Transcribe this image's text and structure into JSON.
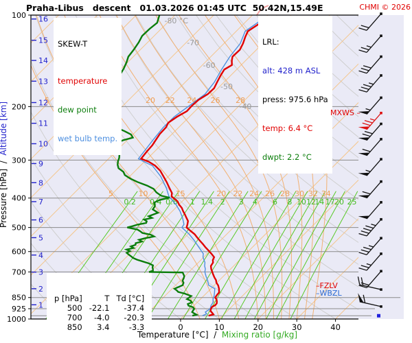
{
  "title": "Praha-Libus   descent   01.03.2026 01:45 UTC  50.42N,15.49E",
  "credit": "CHMI © 2026",
  "legend": {
    "heading": "SKEW-T",
    "items": [
      {
        "label": "temperature",
        "color": "#e00000"
      },
      {
        "label": "dew point",
        "color": "#0b7d0b"
      },
      {
        "label": "wet bulb temp.",
        "color": "#4d8fe0"
      }
    ]
  },
  "info_box": {
    "heading": "LRL:",
    "alt": "alt: 428 m ASL",
    "press": "press: 975.6 hPa",
    "temp": "temp: 6.4 °C",
    "dwpt": "dwpt: 2.2 °C"
  },
  "markers": {
    "mxws": "MXWS –",
    "fzlv": "–FZLV",
    "wbzl": "–WBZL"
  },
  "table": {
    "headers": [
      "p [hPa]",
      "T",
      "Td [°C]"
    ],
    "rows": [
      [
        "500",
        "-22.1",
        "-37.4"
      ],
      [
        "700",
        "-4.0",
        "-20.3"
      ],
      [
        "850",
        "3.4",
        "-3.3"
      ]
    ]
  },
  "axis_labels": {
    "x_black": "Temperature [°C]  /  ",
    "x_green": "Mixing ratio [g/kg]",
    "y_black": "Pressure [hPa]  /  ",
    "y_blue": "Altitude [km]"
  },
  "chart_data": {
    "type": "skewt-log-p sounding",
    "x_ticks": [
      -30,
      -20,
      -10,
      0,
      10,
      20,
      30,
      40
    ],
    "pressure_ticks": [
      100,
      200,
      300,
      400,
      500,
      600,
      700,
      850,
      925,
      1000
    ],
    "altitude_ticks": [
      {
        "km": 16,
        "p": 103
      },
      {
        "km": 15,
        "p": 121
      },
      {
        "km": 14,
        "p": 141
      },
      {
        "km": 13,
        "p": 165
      },
      {
        "km": 12,
        "p": 194
      },
      {
        "km": 11,
        "p": 227
      },
      {
        "km": 10,
        "p": 265
      },
      {
        "km": 9,
        "p": 308
      },
      {
        "km": 8,
        "p": 356
      },
      {
        "km": 7,
        "p": 411
      },
      {
        "km": 6,
        "p": 472
      },
      {
        "km": 5,
        "p": 540
      },
      {
        "km": 4,
        "p": 616
      },
      {
        "km": 3,
        "p": 701
      },
      {
        "km": 2,
        "p": 795
      },
      {
        "km": 1,
        "p": 898
      }
    ],
    "isotherm_step": 10,
    "isotherm_labels": [
      {
        "t": -80,
        "y": 30,
        "text": "-80 °C"
      },
      {
        "t": -70,
        "y": 62,
        "text": "-70"
      },
      {
        "t": -60,
        "y": 95,
        "text": "-60"
      },
      {
        "t": -50,
        "y": 126,
        "text": "-50"
      },
      {
        "t": -40,
        "y": 155,
        "text": "-40"
      },
      {
        "t": -30,
        "y": 185,
        "text": "-30"
      },
      {
        "t": -20,
        "y": 212,
        "text": "-20"
      },
      {
        "t": -10,
        "y": 237,
        "text": "-10 °C"
      }
    ],
    "moist_adiabats": [
      5,
      10,
      15,
      20,
      22,
      24,
      26,
      28,
      30,
      32,
      34
    ],
    "moist_label_rows": [
      146,
      282
    ],
    "mixing_ratios": [
      0.2,
      0.4,
      0.6,
      1,
      1.4,
      2,
      3,
      4,
      6,
      8,
      10,
      12,
      14,
      17,
      20,
      25
    ],
    "mixing_label_y": 294,
    "surface_pressure": 975.6,
    "profiles": {
      "temperature": [
        [
          103,
          -55.6
        ],
        [
          108,
          -56.2
        ],
        [
          113,
          -57.0
        ],
        [
          118,
          -56.2
        ],
        [
          124,
          -55.1
        ],
        [
          130,
          -54.3
        ],
        [
          137,
          -54.4
        ],
        [
          141,
          -53.6
        ],
        [
          146,
          -52.4
        ],
        [
          151,
          -53.2
        ],
        [
          158,
          -52.6
        ],
        [
          166,
          -51.8
        ],
        [
          174,
          -51.0
        ],
        [
          182,
          -51.1
        ],
        [
          190,
          -52.0
        ],
        [
          199,
          -52.2
        ],
        [
          207,
          -52.1
        ],
        [
          216,
          -53.2
        ],
        [
          226,
          -53.9
        ],
        [
          234,
          -53.3
        ],
        [
          246,
          -53.2
        ],
        [
          257,
          -52.7
        ],
        [
          268,
          -52.2
        ],
        [
          282,
          -52.0
        ],
        [
          297,
          -51.6
        ],
        [
          304,
          -48.8
        ],
        [
          313,
          -46.2
        ],
        [
          325,
          -43.6
        ],
        [
          340,
          -41.2
        ],
        [
          355,
          -38.9
        ],
        [
          371,
          -36.7
        ],
        [
          385,
          -34.8
        ],
        [
          395,
          -34.0
        ],
        [
          410,
          -31.2
        ],
        [
          420,
          -30.0
        ],
        [
          431,
          -28.4
        ],
        [
          442,
          -27.2
        ],
        [
          453,
          -25.9
        ],
        [
          465,
          -24.6
        ],
        [
          476,
          -23.4
        ],
        [
          488,
          -22.7
        ],
        [
          500,
          -22.1
        ],
        [
          513,
          -20.2
        ],
        [
          526,
          -18.3
        ],
        [
          540,
          -16.7
        ],
        [
          553,
          -15.2
        ],
        [
          567,
          -13.6
        ],
        [
          581,
          -12.1
        ],
        [
          596,
          -10.4
        ],
        [
          610,
          -8.9
        ],
        [
          626,
          -7.3
        ],
        [
          640,
          -6.9
        ],
        [
          652,
          -6.2
        ],
        [
          669,
          -5.9
        ],
        [
          685,
          -5.0
        ],
        [
          700,
          -4.0
        ],
        [
          715,
          -3.0
        ],
        [
          730,
          -2.0
        ],
        [
          745,
          -0.9
        ],
        [
          760,
          -0.1
        ],
        [
          775,
          1.0
        ],
        [
          795,
          2.1
        ],
        [
          818,
          3.1
        ],
        [
          835,
          3.2
        ],
        [
          850,
          3.4
        ],
        [
          862,
          4.2
        ],
        [
          875,
          4.8
        ],
        [
          888,
          5.3
        ],
        [
          900,
          5.4
        ],
        [
          912,
          5.0
        ],
        [
          925,
          5.2
        ],
        [
          940,
          5.6
        ],
        [
          955,
          6.6
        ],
        [
          966,
          7.3
        ],
        [
          975.6,
          6.4
        ]
      ],
      "dewpoint": [
        [
          100,
          -84.0
        ],
        [
          106,
          -82.6
        ],
        [
          111,
          -83.0
        ],
        [
          117,
          -83.1
        ],
        [
          123,
          -82.3
        ],
        [
          130,
          -81.7
        ],
        [
          137,
          -81.3
        ],
        [
          143,
          -80.3
        ],
        [
          150,
          -79.4
        ],
        [
          158,
          -78.7
        ],
        [
          166,
          -77.7
        ],
        [
          174,
          -77.3
        ],
        [
          183,
          -76.4
        ],
        [
          193,
          -74.6
        ],
        [
          203,
          -72.5
        ],
        [
          213,
          -70.6
        ],
        [
          220,
          -68.0
        ],
        [
          224,
          -66.7
        ],
        [
          230,
          -67.6
        ],
        [
          235,
          -65.8
        ],
        [
          241,
          -63.0
        ],
        [
          247,
          -60.5
        ],
        [
          253,
          -59.2
        ],
        [
          258,
          -61.0
        ],
        [
          264,
          -62.1
        ],
        [
          270,
          -61.0
        ],
        [
          277,
          -59.9
        ],
        [
          285,
          -58.6
        ],
        [
          295,
          -57.5
        ],
        [
          303,
          -56.9
        ],
        [
          311,
          -56.1
        ],
        [
          319,
          -55.0
        ],
        [
          328,
          -52.8
        ],
        [
          336,
          -51.6
        ],
        [
          345,
          -49.3
        ],
        [
          354,
          -46.6
        ],
        [
          364,
          -43.1
        ],
        [
          373,
          -40.6
        ],
        [
          383,
          -39.0
        ],
        [
          393,
          -36.9
        ],
        [
          399,
          -34.2
        ],
        [
          406,
          -36.2
        ],
        [
          414,
          -36.9
        ],
        [
          425,
          -35.8
        ],
        [
          436,
          -35.5
        ],
        [
          447,
          -33.3
        ],
        [
          459,
          -34.8
        ],
        [
          465,
          -33.5
        ],
        [
          471,
          -35.1
        ],
        [
          477,
          -34.0
        ],
        [
          483,
          -33.7
        ],
        [
          489,
          -35.5
        ],
        [
          495,
          -36.4
        ],
        [
          500,
          -37.4
        ],
        [
          508,
          -34.2
        ],
        [
          515,
          -33.0
        ],
        [
          521,
          -32.1
        ],
        [
          528,
          -29.5
        ],
        [
          535,
          -28.2
        ],
        [
          542,
          -30.0
        ],
        [
          549,
          -31.2
        ],
        [
          556,
          -30.0
        ],
        [
          563,
          -31.2
        ],
        [
          570,
          -30.8
        ],
        [
          577,
          -31.6
        ],
        [
          584,
          -30.5
        ],
        [
          591,
          -31.9
        ],
        [
          598,
          -30.6
        ],
        [
          606,
          -31.0
        ],
        [
          614,
          -30.0
        ],
        [
          622,
          -29.0
        ],
        [
          630,
          -28.0
        ],
        [
          638,
          -26.6
        ],
        [
          647,
          -24.6
        ],
        [
          656,
          -22.6
        ],
        [
          666,
          -21.0
        ],
        [
          676,
          -20.6
        ],
        [
          686,
          -20.0
        ],
        [
          694,
          -19.6
        ],
        [
          700,
          -20.3
        ],
        [
          703,
          -11.5
        ],
        [
          710,
          -11.0
        ],
        [
          723,
          -10.1
        ],
        [
          735,
          -9.7
        ],
        [
          748,
          -9.4
        ],
        [
          760,
          -8.6
        ],
        [
          774,
          -8.2
        ],
        [
          788,
          -9.0
        ],
        [
          795,
          -9.4
        ],
        [
          805,
          -8.4
        ],
        [
          815,
          -7.6
        ],
        [
          825,
          -5.5
        ],
        [
          840,
          -3.2
        ],
        [
          850,
          -3.3
        ],
        [
          860,
          -3.5
        ],
        [
          870,
          -2.2
        ],
        [
          882,
          -1.4
        ],
        [
          893,
          -2.0
        ],
        [
          904,
          -1.4
        ],
        [
          915,
          0.2
        ],
        [
          926,
          0.9
        ],
        [
          937,
          1.0
        ],
        [
          949,
          1.2
        ],
        [
          958,
          2.0
        ],
        [
          968,
          3.0
        ],
        [
          975.6,
          2.2
        ]
      ],
      "wetbulb": [
        [
          103,
          -56.3
        ],
        [
          113,
          -57.7
        ],
        [
          124,
          -55.8
        ],
        [
          137,
          -55.1
        ],
        [
          151,
          -53.9
        ],
        [
          166,
          -52.5
        ],
        [
          182,
          -51.8
        ],
        [
          199,
          -52.9
        ],
        [
          216,
          -53.9
        ],
        [
          234,
          -54.0
        ],
        [
          257,
          -53.4
        ],
        [
          282,
          -52.7
        ],
        [
          297,
          -52.3
        ],
        [
          304,
          -50.0
        ],
        [
          313,
          -46.9
        ],
        [
          340,
          -41.9
        ],
        [
          371,
          -37.5
        ],
        [
          395,
          -34.7
        ],
        [
          420,
          -30.8
        ],
        [
          442,
          -28.0
        ],
        [
          465,
          -25.6
        ],
        [
          488,
          -23.6
        ],
        [
          500,
          -23.3
        ],
        [
          526,
          -19.7
        ],
        [
          553,
          -16.6
        ],
        [
          581,
          -13.8
        ],
        [
          610,
          -11.0
        ],
        [
          626,
          -10.2
        ],
        [
          652,
          -8.3
        ],
        [
          669,
          -7.5
        ],
        [
          685,
          -6.5
        ],
        [
          700,
          -5.9
        ],
        [
          723,
          -4.5
        ],
        [
          748,
          -2.9
        ],
        [
          774,
          -1.5
        ],
        [
          795,
          1.0
        ],
        [
          818,
          1.9
        ],
        [
          840,
          2.7
        ],
        [
          862,
          3.3
        ],
        [
          882,
          4.1
        ],
        [
          904,
          4.4
        ],
        [
          926,
          5.0
        ],
        [
          949,
          4.6
        ],
        [
          962,
          5.4
        ],
        [
          975.6,
          4.8
        ]
      ]
    },
    "wind_barbs": [
      {
        "p": 99,
        "kt": 20,
        "dir": "sw"
      },
      {
        "p": 117,
        "kt": 25,
        "dir": "sw"
      },
      {
        "p": 137,
        "kt": 30,
        "dir": "sw"
      },
      {
        "p": 158,
        "kt": 35,
        "dir": "sw"
      },
      {
        "p": 187,
        "kt": 55,
        "dir": "sw"
      },
      {
        "p": 210,
        "kt": 75,
        "dir": "sw",
        "color": "#dd1111",
        "mxws": true
      },
      {
        "p": 228,
        "kt": 70,
        "dir": "sw"
      },
      {
        "p": 256,
        "kt": 60,
        "dir": "sw"
      },
      {
        "p": 298,
        "kt": 55,
        "dir": "sw"
      },
      {
        "p": 353,
        "kt": 60,
        "dir": "sw"
      },
      {
        "p": 413,
        "kt": 50,
        "dir": "sw"
      },
      {
        "p": 470,
        "kt": 45,
        "dir": "sw"
      },
      {
        "p": 542,
        "kt": 35,
        "dir": "sw"
      },
      {
        "p": 610,
        "kt": 25,
        "dir": "sw"
      },
      {
        "p": 696,
        "kt": 20,
        "dir": "sw"
      },
      {
        "p": 800,
        "kt": 20,
        "dir": "w"
      },
      {
        "p": 910,
        "kt": 60,
        "dir": "w"
      }
    ],
    "colors": {
      "temperature": "#e00000",
      "temperature_upper": "#f2a0a0",
      "dewpoint": "#0b7d0b",
      "wetbulb": "#4d8fe0",
      "isotherm": "#f4c58c",
      "moist_adiabat": "#f2b172",
      "dry_adiabat": "#cfcfcf",
      "mixing": "#58c926",
      "grid": "#8a8a8a",
      "background": "#eaeaf6",
      "barb": "#111111",
      "marker_blue": "#2222dd",
      "isotherm_label": "#9a9a9a",
      "moist_label": "#ef9e55",
      "mixing_label": "#44bb22",
      "altitude": "#2222cc"
    }
  }
}
